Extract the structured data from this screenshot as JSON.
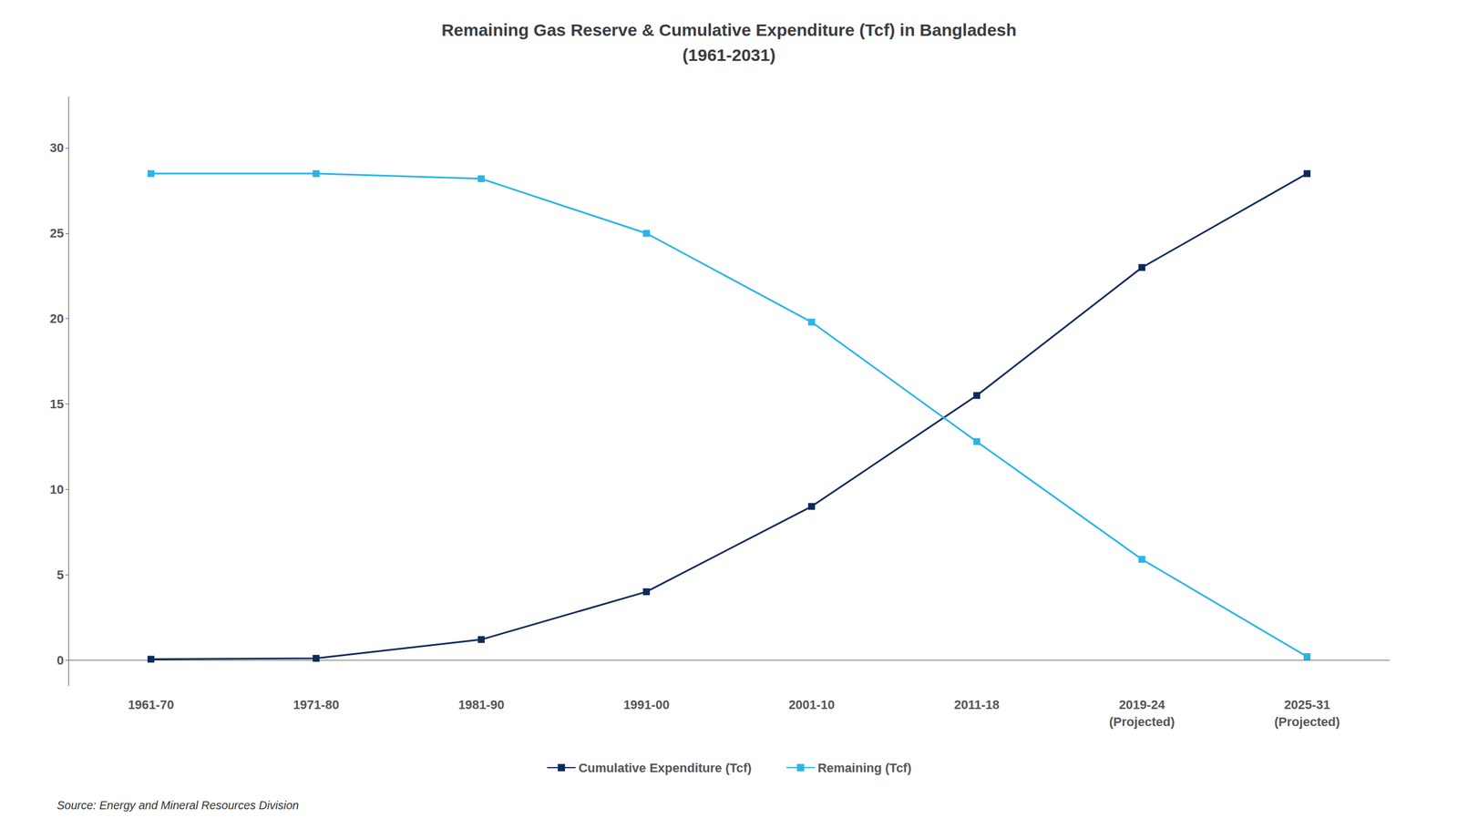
{
  "chart_data": {
    "type": "line",
    "title": "Remaining Gas Reserve & Cumulative Expenditure (Tcf) in Bangladesh\n(1961-2031)",
    "categories": [
      "1961-70",
      "1971-80",
      "1981-90",
      "1991-00",
      "2001-10",
      "2011-18",
      "2019-24\n(Projected)",
      "2025-31\n(Projected)"
    ],
    "series": [
      {
        "name": "Cumulative Expenditure (Tcf)",
        "color": "#0d2a5e",
        "marker": "square",
        "values": [
          0.05,
          0.1,
          1.2,
          4.0,
          9.0,
          15.5,
          23.0,
          28.5
        ]
      },
      {
        "name": "Remaining (Tcf)",
        "color": "#29b5e8",
        "marker": "square",
        "values": [
          28.5,
          28.5,
          28.2,
          25.0,
          19.8,
          12.8,
          5.9,
          0.2
        ]
      }
    ],
    "ylim": [
      -1.5,
      33
    ],
    "yticks": [
      0,
      5,
      10,
      15,
      20,
      25,
      30
    ],
    "grid": false,
    "legend": "bottom",
    "annotations": [
      "Source: Energy and Mineral Resources Division"
    ]
  }
}
